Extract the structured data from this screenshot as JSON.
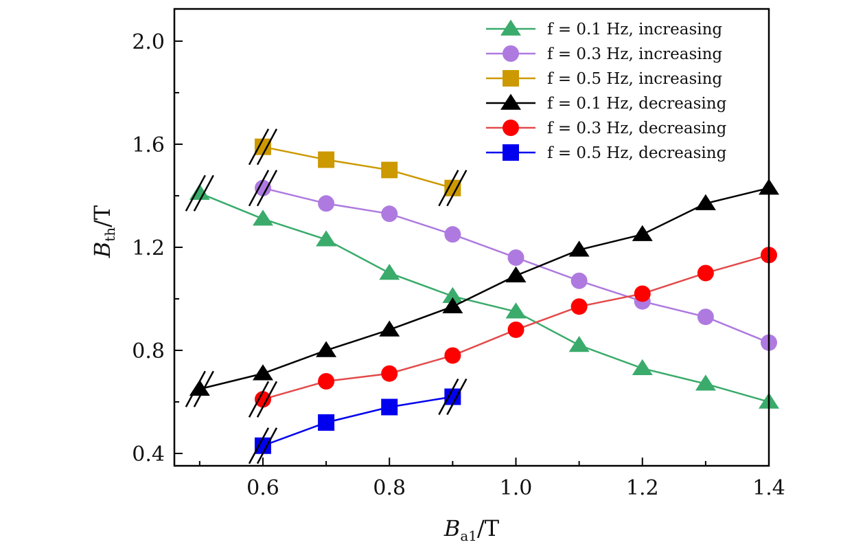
{
  "chart_data": {
    "type": "line",
    "title": "",
    "xlabel": "B_a1/T",
    "xlabel_main": "B",
    "xlabel_sub": "a1",
    "xlabel_unit": "/T",
    "ylabel": "B_th/T",
    "ylabel_main": "B",
    "ylabel_sub": "th",
    "ylabel_unit": "/T",
    "xlim": [
      0.46,
      1.4
    ],
    "ylim": [
      0.352,
      2.125
    ],
    "xticks": [
      0.6,
      0.8,
      1.0,
      1.2,
      1.4
    ],
    "xtick_labels": [
      "0.6",
      "0.8",
      "1.0",
      "1.2",
      "1.4"
    ],
    "x_minor_ticks": [
      0.5,
      0.7,
      0.9,
      1.1,
      1.3
    ],
    "yticks": [
      0.4,
      0.8,
      1.2,
      1.6,
      2.0
    ],
    "ytick_labels": [
      "0.4",
      "0.8",
      "1.2",
      "1.6",
      "2.0"
    ],
    "y_minor_ticks": [
      0.6,
      1.0,
      1.4,
      1.8
    ],
    "grid": false,
    "legend_position": "top-right",
    "series": [
      {
        "name": "f = 0.1 Hz, increasing",
        "legend_label": "f = 0.1 Hz, increasing",
        "marker": "triangle",
        "color": "#3aab6b",
        "line_color": "#3aab6b",
        "x": [
          0.5,
          0.6,
          0.7,
          0.8,
          0.9,
          1.0,
          1.1,
          1.2,
          1.3,
          1.4
        ],
        "y": [
          1.41,
          1.31,
          1.23,
          1.1,
          1.01,
          0.95,
          0.82,
          0.73,
          0.67,
          0.6
        ],
        "break_marks": [
          0.5
        ]
      },
      {
        "name": "f = 0.3 Hz, increasing",
        "legend_label": "f = 0.3 Hz, increasing",
        "marker": "circle",
        "color": "#ae7ae0",
        "line_color": "#ae7ae0",
        "x": [
          0.6,
          0.7,
          0.8,
          0.9,
          1.0,
          1.1,
          1.2,
          1.3,
          1.4
        ],
        "y": [
          1.43,
          1.37,
          1.33,
          1.25,
          1.16,
          1.07,
          0.99,
          0.93,
          0.83
        ],
        "break_marks": [
          0.6
        ]
      },
      {
        "name": "f = 0.5 Hz, increasing",
        "legend_label": "f = 0.5 Hz, increasing",
        "marker": "square",
        "color": "#cc9900",
        "line_color": "#cc9900",
        "x": [
          0.6,
          0.7,
          0.8,
          0.9
        ],
        "y": [
          1.59,
          1.54,
          1.5,
          1.43
        ],
        "break_marks": [
          0.6,
          0.9
        ]
      },
      {
        "name": "f = 0.1 Hz, decreasing",
        "legend_label": "f = 0.1 Hz, decreasing",
        "marker": "triangle",
        "color": "#000000",
        "line_color": "#000000",
        "x": [
          0.5,
          0.6,
          0.7,
          0.8,
          0.9,
          1.0,
          1.1,
          1.2,
          1.3,
          1.4
        ],
        "y": [
          0.65,
          0.71,
          0.8,
          0.88,
          0.97,
          1.09,
          1.19,
          1.25,
          1.37,
          1.43
        ],
        "break_marks": [
          0.5
        ]
      },
      {
        "name": "f = 0.3 Hz, decreasing",
        "legend_label": "f = 0.3 Hz, decreasing",
        "marker": "circle",
        "color": "#ff0000",
        "line_color": "#e34a4a",
        "x": [
          0.6,
          0.7,
          0.8,
          0.9,
          1.0,
          1.1,
          1.2,
          1.3,
          1.4
        ],
        "y": [
          0.61,
          0.68,
          0.71,
          0.78,
          0.88,
          0.97,
          1.02,
          1.1,
          1.17
        ],
        "break_marks": [
          0.6
        ]
      },
      {
        "name": "f = 0.5 Hz, decreasing",
        "legend_label": "f = 0.5 Hz, decreasing",
        "marker": "square",
        "color": "#0000ee",
        "line_color": "#0000ee",
        "x": [
          0.6,
          0.7,
          0.8,
          0.9
        ],
        "y": [
          0.43,
          0.52,
          0.58,
          0.62
        ],
        "break_marks": [
          0.6,
          0.9
        ]
      }
    ]
  }
}
